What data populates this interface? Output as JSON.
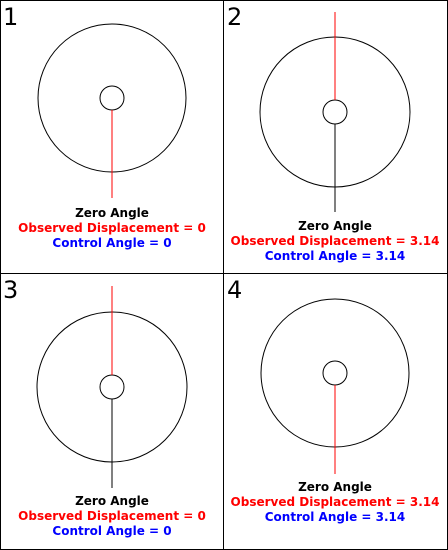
{
  "colors": {
    "border": "#000000",
    "circle": "#000000",
    "zero_text": "#000000",
    "observed": "#ff0000",
    "control": "#0000ff",
    "red_line": "#ff0000",
    "black_line": "#000000"
  },
  "panels": [
    {
      "number": "1",
      "zero_label": "Zero Angle",
      "observed_label": "Observed Displacement = 0",
      "control_label": "Control Angle = 0"
    },
    {
      "number": "2",
      "zero_label": "Zero Angle",
      "observed_label": "Observed Displacement = 3.14",
      "control_label": "Control Angle = 3.14"
    },
    {
      "number": "3",
      "zero_label": "Zero Angle",
      "observed_label": "Observed Displacement = 0",
      "control_label": "Control Angle = 0"
    },
    {
      "number": "4",
      "zero_label": "Zero Angle",
      "observed_label": "Observed Displacement = 3.14",
      "control_label": "Control Angle = 3.14"
    }
  ]
}
